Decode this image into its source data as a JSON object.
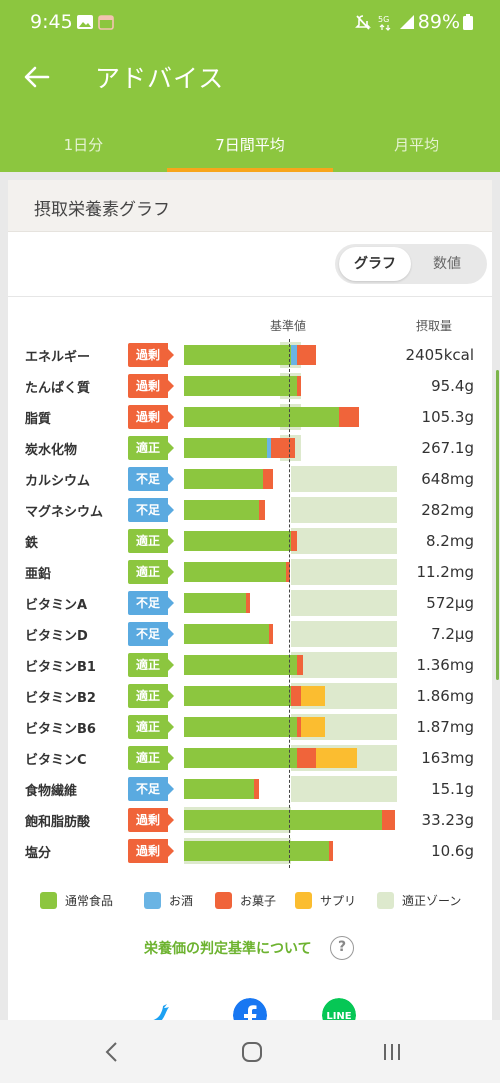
{
  "status_bar": {
    "time": "9:45",
    "battery": "89%",
    "network": "5G"
  },
  "app_bar": {
    "title": "アドバイス",
    "tabs": [
      {
        "label": "1日分",
        "active": false
      },
      {
        "label": "7日間平均",
        "active": true
      },
      {
        "label": "月平均",
        "active": false
      }
    ]
  },
  "card": {
    "title": "摂取栄養素グラフ",
    "toggle": {
      "graph": "グラフ",
      "numeric": "数値",
      "selected": "graph"
    },
    "col_standard": "基準値",
    "col_intake": "摂取量",
    "criteria_link": "栄養価の判定基準について",
    "help_glyph": "?"
  },
  "status_labels": {
    "over": "過剰",
    "ok": "適正",
    "low": "不足"
  },
  "colors": {
    "normal_food": "#8cc63f",
    "alcohol": "#6ab4e4",
    "snacks": "#f0643a",
    "supplement": "#fbbd30",
    "zone": "#dde9cd",
    "accent": "#8cc63f"
  },
  "legend": [
    {
      "label": "通常食品",
      "color": "#8cc63f"
    },
    {
      "label": "お酒",
      "color": "#6ab4e4"
    },
    {
      "label": "お菓子",
      "color": "#f0643a"
    },
    {
      "label": "サプリ",
      "color": "#fbbd30"
    },
    {
      "label": "適正ゾーン",
      "color": "#dde9cd"
    }
  ],
  "nutrients": [
    {
      "name": "エネルギー",
      "status": "over",
      "value": "2405kcal",
      "food": 0.5,
      "alcohol": 0.03,
      "snacks": 0.09,
      "supplement": 0,
      "zone": [
        0.45,
        0.55
      ]
    },
    {
      "name": "たんぱく質",
      "status": "over",
      "value": "95.4g",
      "food": 0.53,
      "alcohol": 0,
      "snacks": 0.02,
      "supplement": 0,
      "zone": [
        0.45,
        0.55
      ]
    },
    {
      "name": "脂質",
      "status": "over",
      "value": "105.3g",
      "food": 0.73,
      "alcohol": 0,
      "snacks": 0.09,
      "supplement": 0,
      "zone": [
        0.45,
        0.55
      ]
    },
    {
      "name": "炭水化物",
      "status": "ok",
      "value": "267.1g",
      "food": 0.39,
      "alcohol": 0.02,
      "snacks": 0.11,
      "supplement": 0,
      "zone": [
        0.45,
        0.55
      ]
    },
    {
      "name": "カルシウム",
      "status": "low",
      "value": "648mg",
      "food": 0.37,
      "alcohol": 0,
      "snacks": 0.05,
      "supplement": 0,
      "zone": [
        0.5,
        1.0
      ]
    },
    {
      "name": "マグネシウム",
      "status": "low",
      "value": "282mg",
      "food": 0.35,
      "alcohol": 0,
      "snacks": 0.03,
      "supplement": 0,
      "zone": [
        0.5,
        1.0
      ]
    },
    {
      "name": "鉄",
      "status": "ok",
      "value": "8.2mg",
      "food": 0.5,
      "alcohol": 0,
      "snacks": 0.03,
      "supplement": 0,
      "zone": [
        0.5,
        1.0
      ]
    },
    {
      "name": "亜鉛",
      "status": "ok",
      "value": "11.2mg",
      "food": 0.48,
      "alcohol": 0,
      "snacks": 0.02,
      "supplement": 0,
      "zone": [
        0.5,
        1.0
      ]
    },
    {
      "name": "ビタミンA",
      "status": "low",
      "value": "572μg",
      "food": 0.29,
      "alcohol": 0,
      "snacks": 0.02,
      "supplement": 0,
      "zone": [
        0.5,
        1.0
      ]
    },
    {
      "name": "ビタミンD",
      "status": "low",
      "value": "7.2μg",
      "food": 0.4,
      "alcohol": 0,
      "snacks": 0.02,
      "supplement": 0,
      "zone": [
        0.5,
        1.0
      ]
    },
    {
      "name": "ビタミンB1",
      "status": "ok",
      "value": "1.36mg",
      "food": 0.53,
      "alcohol": 0,
      "snacks": 0.03,
      "supplement": 0,
      "zone": [
        0.5,
        1.0
      ]
    },
    {
      "name": "ビタミンB2",
      "status": "ok",
      "value": "1.86mg",
      "food": 0.5,
      "alcohol": 0,
      "snacks": 0.05,
      "supplement": 0.11,
      "zone": [
        0.5,
        1.0
      ]
    },
    {
      "name": "ビタミンB6",
      "status": "ok",
      "value": "1.87mg",
      "food": 0.53,
      "alcohol": 0,
      "snacks": 0.02,
      "supplement": 0.11,
      "zone": [
        0.5,
        1.0
      ]
    },
    {
      "name": "ビタミンC",
      "status": "ok",
      "value": "163mg",
      "food": 0.53,
      "alcohol": 0,
      "snacks": 0.09,
      "supplement": 0.19,
      "zone": [
        0.5,
        1.0
      ]
    },
    {
      "name": "食物繊維",
      "status": "low",
      "value": "15.1g",
      "food": 0.33,
      "alcohol": 0,
      "snacks": 0.02,
      "supplement": 0,
      "zone": [
        0.5,
        1.0
      ]
    },
    {
      "name": "飽和脂肪酸",
      "status": "over",
      "value": "33.23g",
      "food": 0.93,
      "alcohol": 0,
      "snacks": 0.06,
      "supplement": 0,
      "zone": [
        0.0,
        0.5
      ]
    },
    {
      "name": "塩分",
      "status": "over",
      "value": "10.6g",
      "food": 0.68,
      "alcohol": 0,
      "snacks": 0.02,
      "supplement": 0,
      "zone": [
        0.0,
        0.5
      ]
    }
  ],
  "share": [
    {
      "name": "twitter",
      "color": "#1da1f2"
    },
    {
      "name": "facebook",
      "color": "#1877f2"
    },
    {
      "name": "line",
      "color": "#06c755",
      "label": "LINE"
    }
  ]
}
